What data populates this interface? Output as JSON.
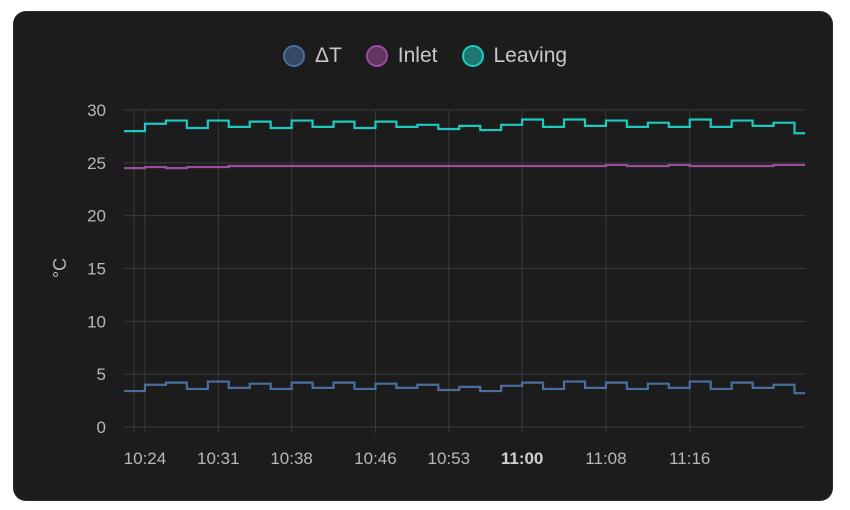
{
  "chart_data": {
    "type": "line",
    "title": "",
    "xlabel": "",
    "ylabel": "°C",
    "ylim": [
      0,
      30
    ],
    "yticks": [
      0,
      5,
      10,
      15,
      20,
      25,
      30
    ],
    "xlim": [
      "10:22",
      "11:27"
    ],
    "xticks": [
      {
        "label": "10:24",
        "time": "10:24",
        "major": false
      },
      {
        "label": "10:31",
        "time": "10:31",
        "major": false
      },
      {
        "label": "10:38",
        "time": "10:38",
        "major": false
      },
      {
        "label": "10:46",
        "time": "10:46",
        "major": false
      },
      {
        "label": "10:53",
        "time": "10:53",
        "major": false
      },
      {
        "label": "11:00",
        "time": "11:00",
        "major": true
      },
      {
        "label": "11:08",
        "time": "11:08",
        "major": false
      },
      {
        "label": "11:16",
        "time": "11:16",
        "major": false
      }
    ],
    "grid": true,
    "legend": "top-center",
    "step": true,
    "series": [
      {
        "name": "ΔT",
        "color": "#4a6f9e",
        "x": [
          "10:22",
          "10:24",
          "10:26",
          "10:28",
          "10:30",
          "10:32",
          "10:34",
          "10:36",
          "10:38",
          "10:40",
          "10:42",
          "10:44",
          "10:46",
          "10:48",
          "10:50",
          "10:52",
          "10:54",
          "10:56",
          "10:58",
          "11:00",
          "11:02",
          "11:04",
          "11:06",
          "11:08",
          "11:10",
          "11:12",
          "11:14",
          "11:16",
          "11:18",
          "11:20",
          "11:22",
          "11:24",
          "11:26"
        ],
        "y": [
          3.4,
          4.0,
          4.2,
          3.6,
          4.3,
          3.7,
          4.1,
          3.6,
          4.2,
          3.7,
          4.2,
          3.6,
          4.1,
          3.7,
          4.0,
          3.5,
          3.8,
          3.4,
          3.9,
          4.2,
          3.6,
          4.3,
          3.7,
          4.2,
          3.6,
          4.1,
          3.7,
          4.3,
          3.6,
          4.2,
          3.7,
          4.0,
          3.2
        ]
      },
      {
        "name": "Inlet",
        "color": "#9b4d9e",
        "x": [
          "10:22",
          "10:24",
          "10:26",
          "10:28",
          "10:30",
          "10:32",
          "10:34",
          "10:36",
          "10:38",
          "10:40",
          "10:42",
          "10:44",
          "10:46",
          "10:48",
          "10:50",
          "10:52",
          "10:54",
          "10:56",
          "10:58",
          "11:00",
          "11:02",
          "11:04",
          "11:06",
          "11:08",
          "11:10",
          "11:12",
          "11:14",
          "11:16",
          "11:18",
          "11:20",
          "11:22",
          "11:24",
          "11:26"
        ],
        "y": [
          24.5,
          24.6,
          24.5,
          24.6,
          24.6,
          24.7,
          24.7,
          24.7,
          24.7,
          24.7,
          24.7,
          24.7,
          24.7,
          24.7,
          24.7,
          24.7,
          24.7,
          24.7,
          24.7,
          24.7,
          24.7,
          24.7,
          24.7,
          24.8,
          24.7,
          24.7,
          24.8,
          24.7,
          24.7,
          24.7,
          24.7,
          24.8,
          24.8
        ]
      },
      {
        "name": "Leaving",
        "color": "#1ec9c0",
        "x": [
          "10:22",
          "10:24",
          "10:26",
          "10:28",
          "10:30",
          "10:32",
          "10:34",
          "10:36",
          "10:38",
          "10:40",
          "10:42",
          "10:44",
          "10:46",
          "10:48",
          "10:50",
          "10:52",
          "10:54",
          "10:56",
          "10:58",
          "11:00",
          "11:02",
          "11:04",
          "11:06",
          "11:08",
          "11:10",
          "11:12",
          "11:14",
          "11:16",
          "11:18",
          "11:20",
          "11:22",
          "11:24",
          "11:26"
        ],
        "y": [
          28.0,
          28.7,
          29.0,
          28.3,
          29.0,
          28.4,
          28.9,
          28.3,
          29.0,
          28.4,
          28.9,
          28.3,
          28.9,
          28.4,
          28.6,
          28.2,
          28.5,
          28.1,
          28.6,
          29.1,
          28.4,
          29.1,
          28.5,
          29.0,
          28.4,
          28.8,
          28.4,
          29.1,
          28.4,
          29.0,
          28.5,
          28.8,
          27.8
        ]
      }
    ]
  }
}
